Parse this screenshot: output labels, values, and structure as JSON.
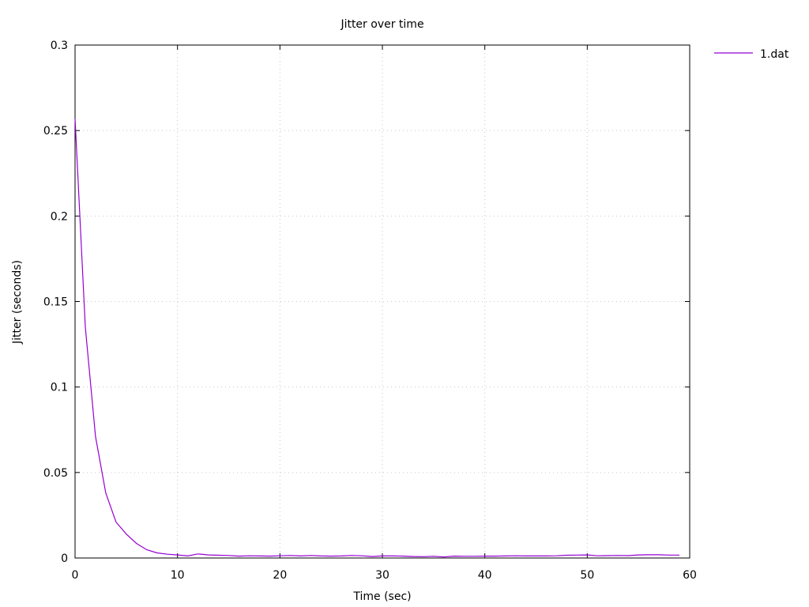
{
  "chart_data": {
    "type": "line",
    "title": "Jitter  over time",
    "xlabel": "Time (sec)",
    "ylabel": "Jitter (seconds)",
    "xlim": [
      0,
      60
    ],
    "ylim": [
      0,
      0.3
    ],
    "x_ticks": [
      "0",
      "10",
      "20",
      "30",
      "40",
      "50",
      "60"
    ],
    "y_ticks": [
      "0",
      "0.05",
      "0.1",
      "0.15",
      "0.2",
      "0.25",
      "0.3"
    ],
    "grid": true,
    "legend_position": "top-right, outside plot area",
    "series": [
      {
        "name": "1.dat",
        "color": "#9400d3",
        "x": [
          0,
          1,
          2,
          3,
          4,
          5,
          6,
          7,
          8,
          9,
          10,
          11,
          12,
          13,
          14,
          15,
          16,
          17,
          18,
          19,
          20,
          21,
          22,
          23,
          24,
          25,
          26,
          27,
          28,
          29,
          30,
          31,
          32,
          33,
          34,
          35,
          36,
          37,
          38,
          39,
          40,
          41,
          42,
          43,
          44,
          45,
          46,
          47,
          48,
          49,
          50,
          51,
          52,
          53,
          54,
          55,
          56,
          57,
          58,
          59
        ],
        "y": [
          0.257,
          0.135,
          0.071,
          0.038,
          0.021,
          0.014,
          0.0085,
          0.0048,
          0.003,
          0.0022,
          0.0018,
          0.0012,
          0.0024,
          0.0018,
          0.0016,
          0.0015,
          0.0011,
          0.0013,
          0.0012,
          0.0011,
          0.0013,
          0.0015,
          0.0012,
          0.0015,
          0.0012,
          0.0011,
          0.0012,
          0.0015,
          0.0013,
          0.0009,
          0.0012,
          0.0012,
          0.0011,
          0.0009,
          0.0008,
          0.001,
          0.0006,
          0.0011,
          0.001,
          0.001,
          0.0011,
          0.0011,
          0.0012,
          0.0013,
          0.0012,
          0.0012,
          0.0012,
          0.0013,
          0.0016,
          0.0017,
          0.0018,
          0.0013,
          0.0014,
          0.0015,
          0.0014,
          0.0018,
          0.0019,
          0.0019,
          0.0017,
          0.0017
        ]
      }
    ]
  }
}
